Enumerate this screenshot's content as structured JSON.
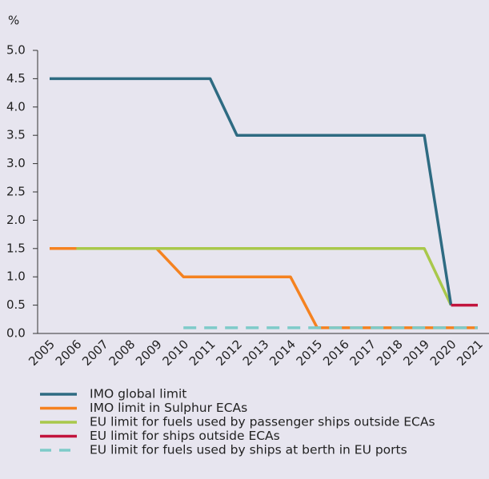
{
  "chart_data": {
    "type": "line",
    "y_label": "%",
    "categories": [
      "2005",
      "2006",
      "2007",
      "2008",
      "2009",
      "2010",
      "2011",
      "2012",
      "2013",
      "2014",
      "2015",
      "2016",
      "2017",
      "2018",
      "2019",
      "2020",
      "2021"
    ],
    "ylim": [
      0,
      5
    ],
    "yticks": [
      {
        "value": 0,
        "label": "0.0"
      },
      0.5,
      {
        "value": 1,
        "label": "1.0"
      },
      1.5,
      {
        "value": 2,
        "label": "2.0"
      },
      2.5,
      {
        "value": 3,
        "label": "3.0"
      },
      3.5,
      {
        "value": 4,
        "label": "4.0"
      },
      4.5,
      {
        "value": 5,
        "label": "5.0"
      }
    ],
    "series": [
      {
        "name": "IMO global limit",
        "color": "#2e6b82",
        "values": [
          4.5,
          4.5,
          4.5,
          4.5,
          4.5,
          4.5,
          4.5,
          3.5,
          3.5,
          3.5,
          3.5,
          3.5,
          3.5,
          3.5,
          3.5,
          0.5,
          null
        ]
      },
      {
        "name": "IMO limit in Sulphur ECAs",
        "color": "#f58220",
        "values": [
          1.5,
          1.5,
          1.5,
          1.5,
          1.5,
          1.0,
          1.0,
          1.0,
          1.0,
          1.0,
          0.1,
          0.1,
          0.1,
          0.1,
          0.1,
          0.1,
          0.1
        ]
      },
      {
        "name": "EU limit for fuels used by passenger ships outside ECAs",
        "color": "#a9c84b",
        "values": [
          null,
          1.5,
          1.5,
          1.5,
          1.5,
          1.5,
          1.5,
          1.5,
          1.5,
          1.5,
          1.5,
          1.5,
          1.5,
          1.5,
          1.5,
          0.5,
          null
        ]
      },
      {
        "name": "EU limit for ships outside ECAs",
        "color": "#c2143d",
        "values": [
          null,
          null,
          null,
          null,
          null,
          null,
          null,
          null,
          null,
          null,
          null,
          null,
          null,
          null,
          null,
          0.5,
          0.5
        ]
      },
      {
        "name": "EU limit for fuels used by ships at berth in EU ports",
        "color": "#7ecbc9",
        "dashed": true,
        "values": [
          null,
          null,
          null,
          null,
          null,
          0.1,
          0.1,
          0.1,
          0.1,
          0.1,
          0.1,
          0.1,
          0.1,
          0.1,
          0.1,
          0.1,
          0.1
        ]
      }
    ]
  }
}
